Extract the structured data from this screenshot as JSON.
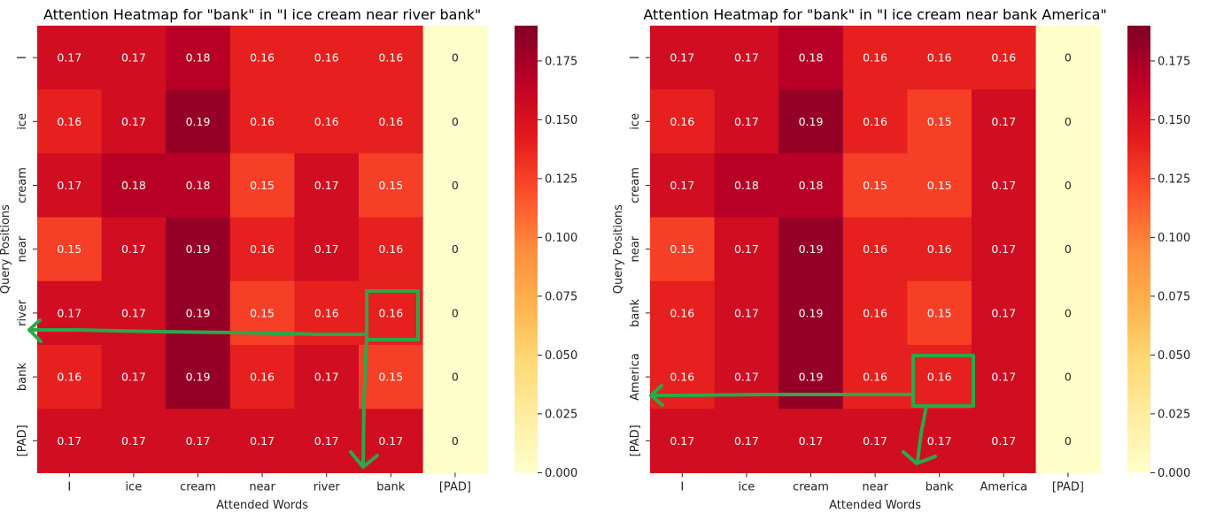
{
  "chart_data": [
    {
      "type": "heatmap",
      "title": "Attention Heatmap for \"bank\" in \"I ice cream near river bank\"",
      "xlabel": "Attended Words",
      "ylabel": "Query Positions",
      "x_categories": [
        "I",
        "ice",
        "cream",
        "near",
        "river",
        "bank",
        "[PAD]"
      ],
      "y_categories": [
        "I",
        "ice",
        "cream",
        "near",
        "river",
        "bank",
        "[PAD]"
      ],
      "values": [
        [
          0.17,
          0.17,
          0.18,
          0.16,
          0.16,
          0.16,
          0
        ],
        [
          0.16,
          0.17,
          0.19,
          0.16,
          0.16,
          0.16,
          0
        ],
        [
          0.17,
          0.18,
          0.18,
          0.15,
          0.17,
          0.15,
          0
        ],
        [
          0.15,
          0.17,
          0.19,
          0.16,
          0.17,
          0.16,
          0
        ],
        [
          0.17,
          0.17,
          0.19,
          0.15,
          0.16,
          0.16,
          0
        ],
        [
          0.16,
          0.17,
          0.19,
          0.16,
          0.17,
          0.15,
          0
        ],
        [
          0.17,
          0.17,
          0.17,
          0.17,
          0.17,
          0.17,
          0
        ]
      ],
      "colorbar": {
        "colormap": "YlOrRd",
        "range": [
          0,
          0.19
        ],
        "ticks": [
          "0.000",
          "0.025",
          "0.050",
          "0.075",
          "0.100",
          "0.125",
          "0.150",
          "0.175"
        ]
      },
      "annotation": {
        "highlight_cell": {
          "row": "river",
          "col": "bank"
        },
        "color": "#2aa84a",
        "arrows": [
          "to-left-axis",
          "to-bottom-axis"
        ]
      }
    },
    {
      "type": "heatmap",
      "title": "Attention Heatmap for \"bank\" in \"I ice cream near bank America\"",
      "xlabel": "Attended Words",
      "ylabel": "Query Positions",
      "x_categories": [
        "I",
        "ice",
        "cream",
        "near",
        "bank",
        "America",
        "[PAD]"
      ],
      "y_categories": [
        "I",
        "ice",
        "cream",
        "near",
        "bank",
        "America",
        "[PAD]"
      ],
      "values": [
        [
          0.17,
          0.17,
          0.18,
          0.16,
          0.16,
          0.16,
          0
        ],
        [
          0.16,
          0.17,
          0.19,
          0.16,
          0.15,
          0.17,
          0
        ],
        [
          0.17,
          0.18,
          0.18,
          0.15,
          0.15,
          0.17,
          0
        ],
        [
          0.15,
          0.17,
          0.19,
          0.16,
          0.16,
          0.17,
          0
        ],
        [
          0.16,
          0.17,
          0.19,
          0.16,
          0.15,
          0.17,
          0
        ],
        [
          0.16,
          0.17,
          0.19,
          0.16,
          0.16,
          0.17,
          0
        ],
        [
          0.17,
          0.17,
          0.17,
          0.17,
          0.17,
          0.17,
          0
        ]
      ],
      "colorbar": {
        "colormap": "YlOrRd",
        "range": [
          0,
          0.19
        ],
        "ticks": [
          "0.000",
          "0.025",
          "0.050",
          "0.075",
          "0.100",
          "0.125",
          "0.150",
          "0.175"
        ]
      },
      "annotation": {
        "highlight_cell": {
          "row": "America",
          "col": "bank"
        },
        "color": "#2aa84a",
        "arrows": [
          "to-left-axis",
          "to-bottom-axis"
        ]
      }
    }
  ]
}
